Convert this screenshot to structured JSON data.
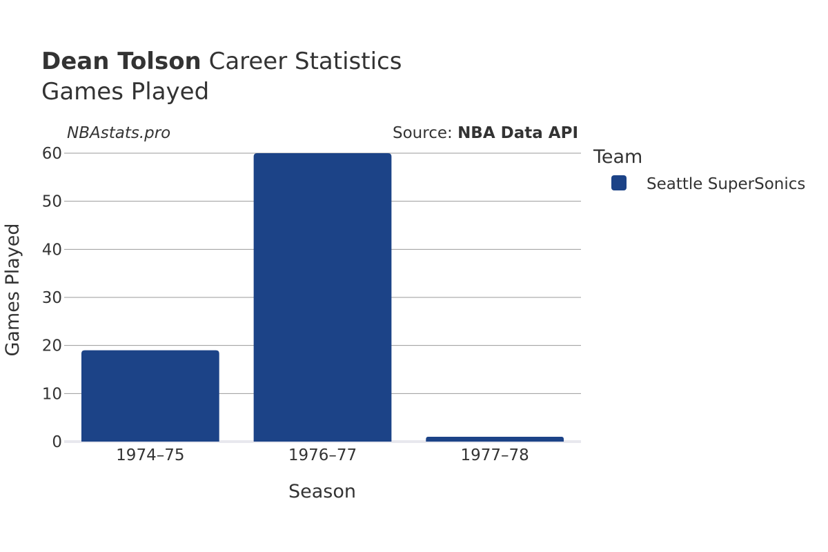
{
  "header": {
    "player_name": "Dean Tolson",
    "title_suffix": " Career Statistics",
    "subtitle": "Games Played"
  },
  "watermark": "NBAstats.pro",
  "source": {
    "prefix": "Source: ",
    "name": "NBA Data API"
  },
  "legend": {
    "title": "Team"
  },
  "colors": {
    "bar": "#1c4387",
    "grid": "#999999",
    "zeroline": "#e8e8ee",
    "text": "#333333"
  },
  "chart_data": {
    "type": "bar",
    "title": "Dean Tolson Career Statistics",
    "subtitle": "Games Played",
    "xlabel": "Season",
    "ylabel": "Games Played",
    "categories": [
      "1974–75",
      "1976–77",
      "1977–78"
    ],
    "series": [
      {
        "name": "Seattle SuperSonics",
        "values": [
          19,
          60,
          1
        ],
        "color": "#1c4387"
      }
    ],
    "ylim": [
      0,
      60
    ],
    "yticks": [
      0,
      10,
      20,
      30,
      40,
      50,
      60
    ],
    "grid": true,
    "legend_position": "right"
  }
}
